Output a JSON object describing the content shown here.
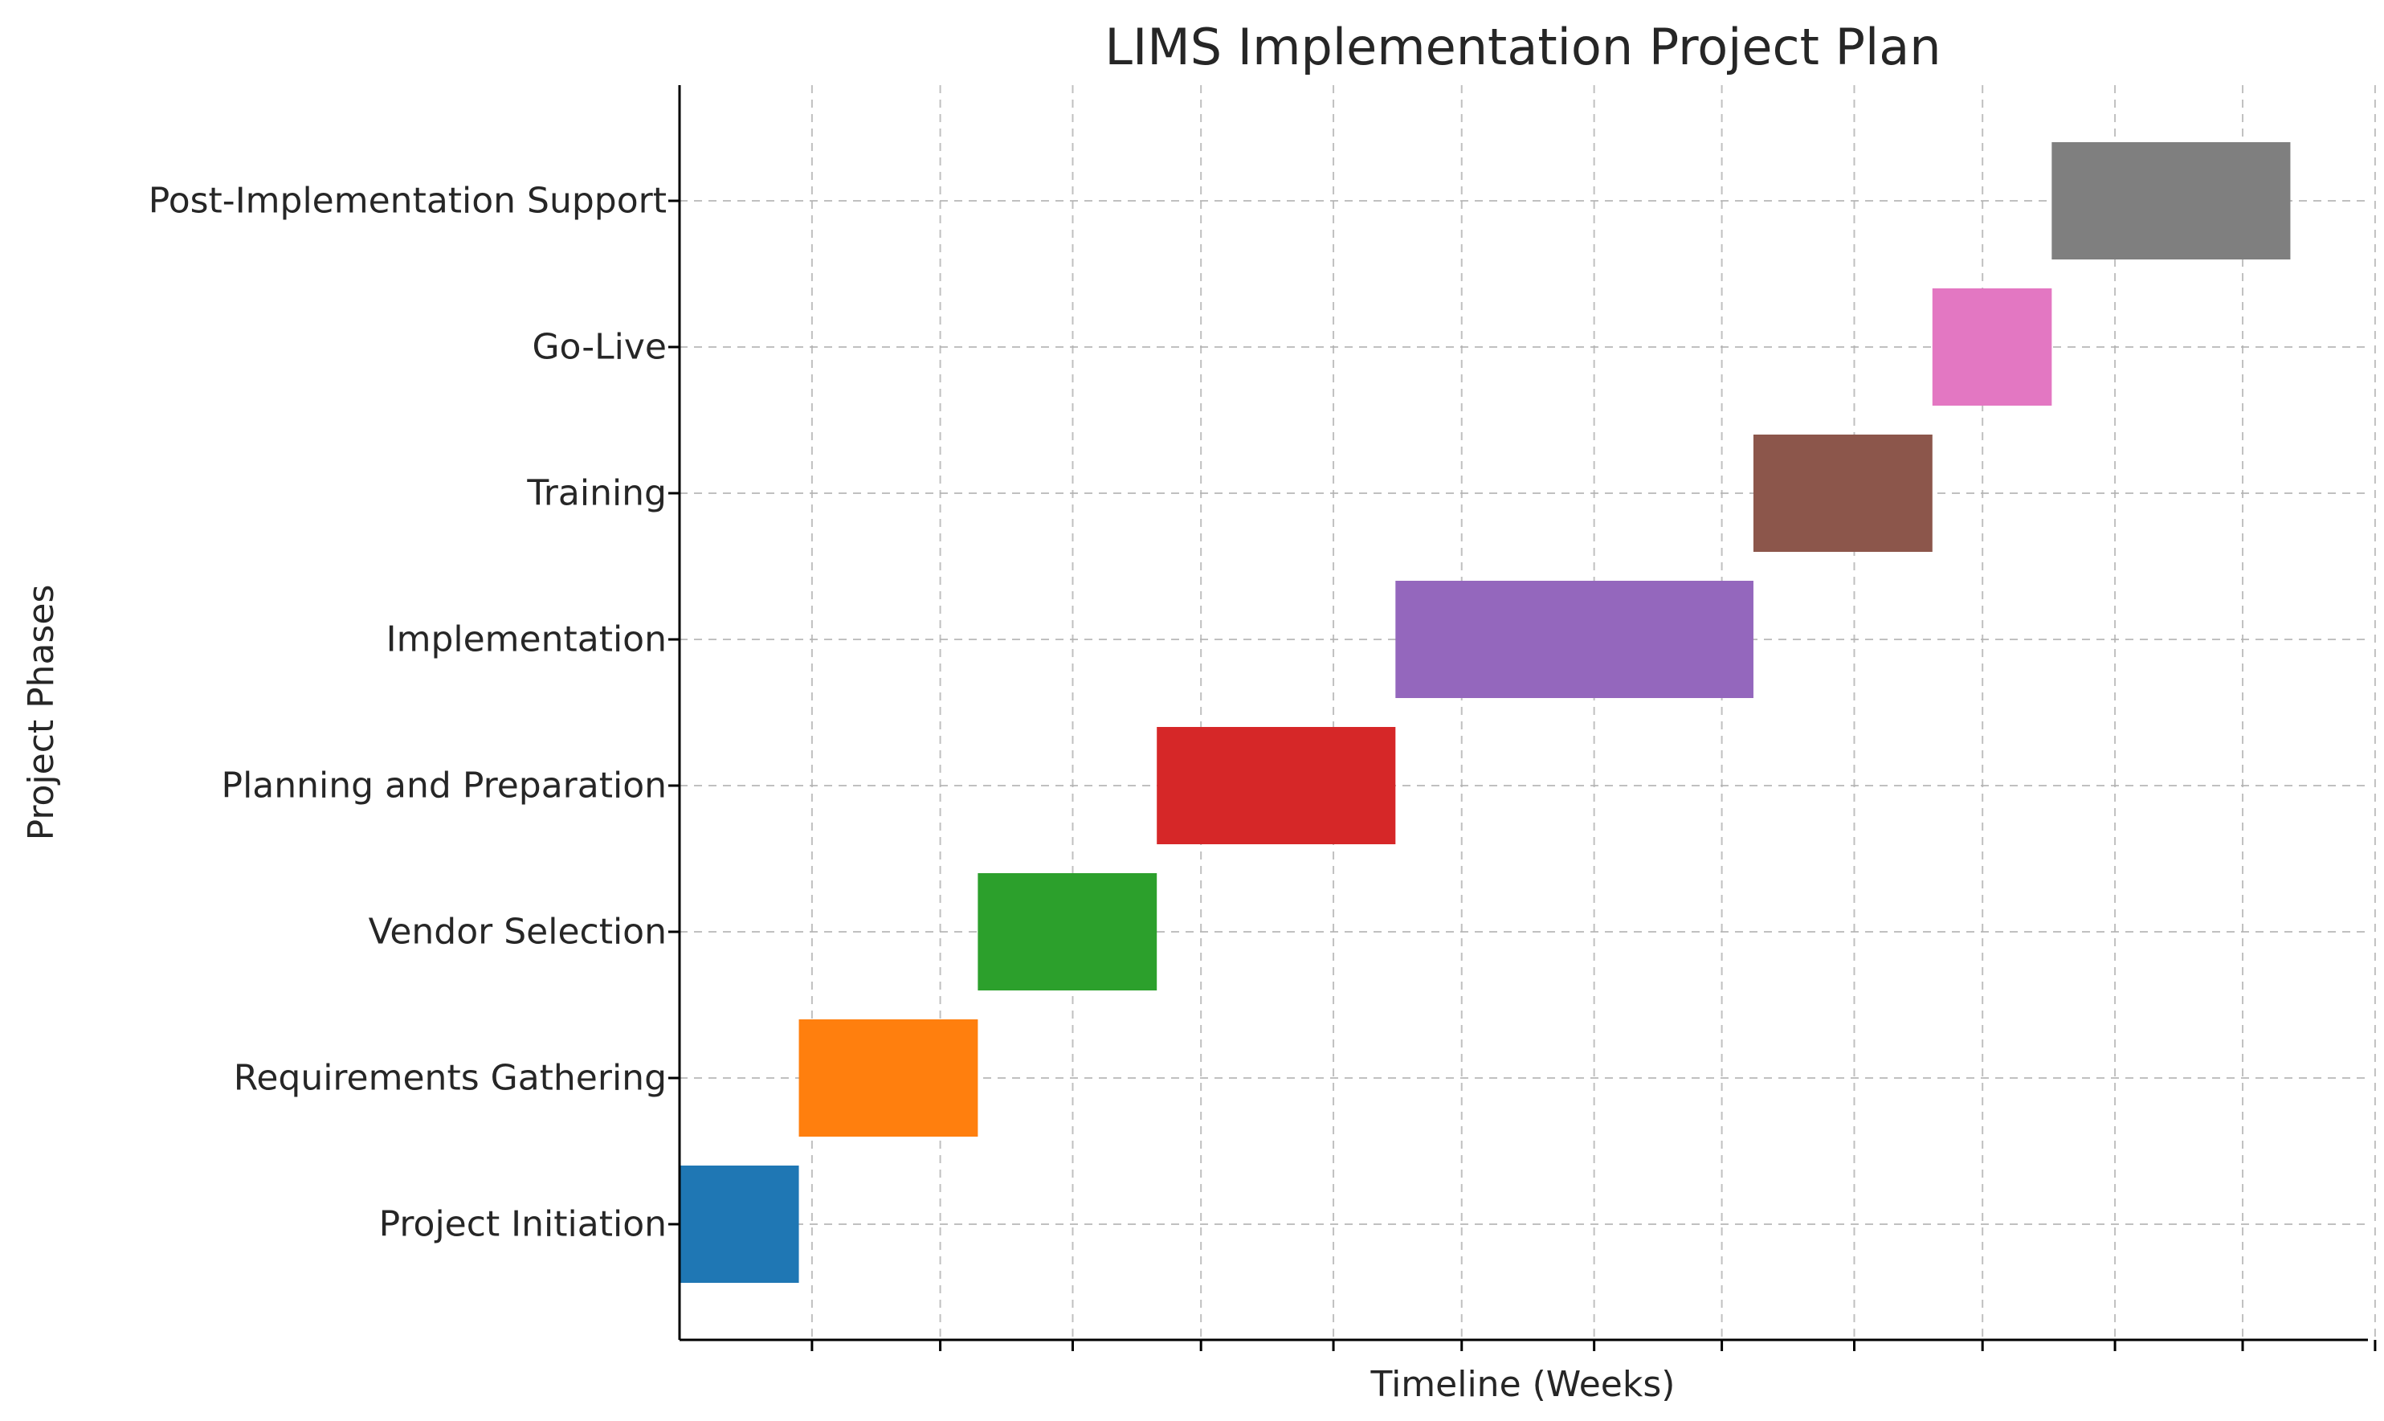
{
  "chart_data": {
    "type": "bar",
    "orientation": "horizontal",
    "title": "LIMS Implementation Project Plan",
    "xlabel": "Timeline (Weeks)",
    "ylabel": "Project Phases",
    "xlim": [
      0,
      2.83
    ],
    "x_ticks": [
      0.222,
      0.437,
      0.659,
      0.874,
      1.096,
      1.311,
      1.533,
      1.747,
      1.969,
      2.184,
      2.406,
      2.62,
      2.842
    ],
    "grid": true,
    "legend": "none",
    "tasks": [
      {
        "name": "Project Initiation",
        "start": 0.0,
        "duration": 0.2,
        "color": "#1f77b4"
      },
      {
        "name": "Requirements Gathering",
        "start": 0.2,
        "duration": 0.3,
        "color": "#ff7f0e"
      },
      {
        "name": "Vendor Selection",
        "start": 0.5,
        "duration": 0.3,
        "color": "#2ca02c"
      },
      {
        "name": "Planning and Preparation",
        "start": 0.8,
        "duration": 0.4,
        "color": "#d62728"
      },
      {
        "name": "Implementation",
        "start": 1.2,
        "duration": 0.6,
        "color": "#9467bd"
      },
      {
        "name": "Training",
        "start": 1.8,
        "duration": 0.3,
        "color": "#8c564b"
      },
      {
        "name": "Go-Live",
        "start": 2.1,
        "duration": 0.2,
        "color": "#e377c2"
      },
      {
        "name": "Post-Implementation Support",
        "start": 2.3,
        "duration": 0.4,
        "color": "#7f7f7f"
      }
    ]
  }
}
